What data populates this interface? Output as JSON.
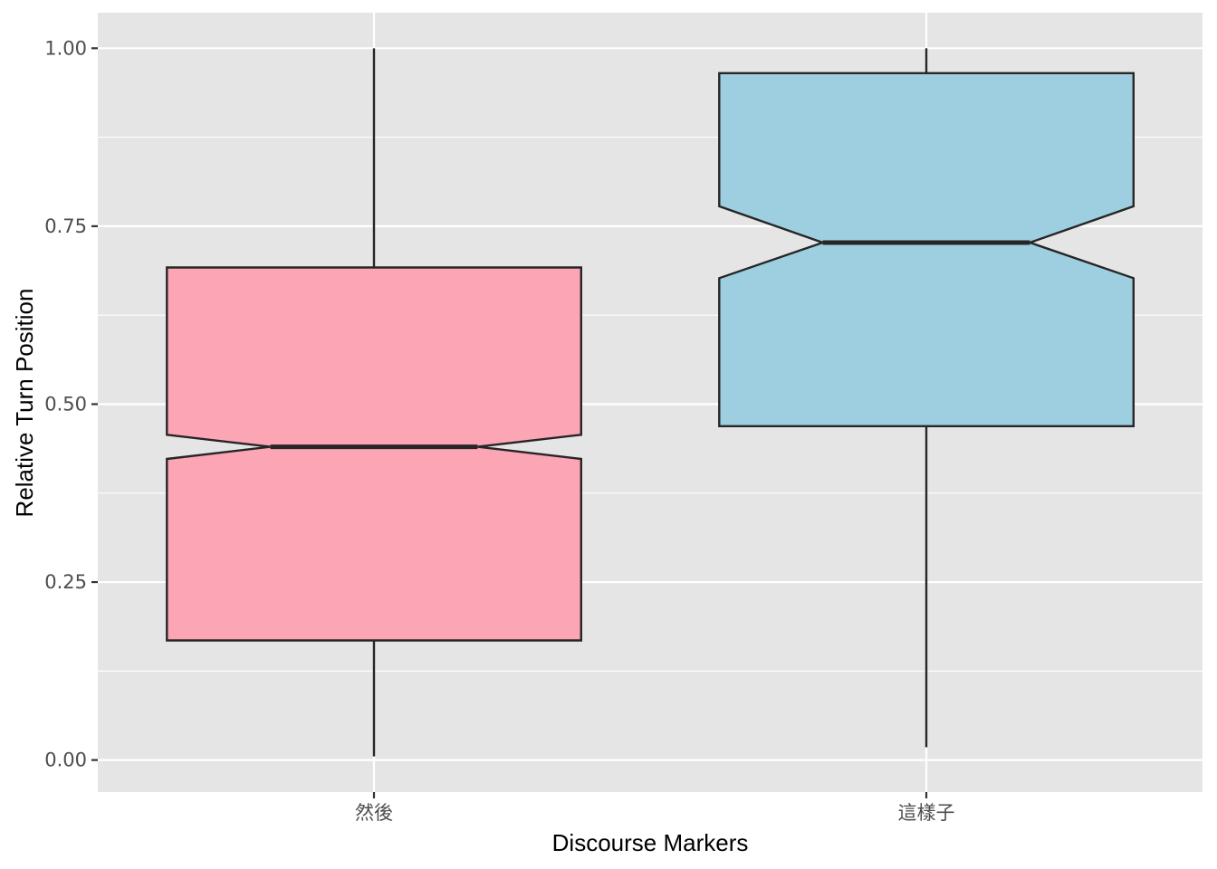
{
  "chart_data": {
    "type": "boxplot",
    "notched": true,
    "xlabel": "Discourse Markers",
    "ylabel": "Relative Turn Position",
    "ylim": [
      -0.045,
      1.05
    ],
    "yticks": [
      {
        "value": 0.0,
        "label": "0.00"
      },
      {
        "value": 0.25,
        "label": "0.25"
      },
      {
        "value": 0.5,
        "label": "0.50"
      },
      {
        "value": 0.75,
        "label": "0.75"
      },
      {
        "value": 1.0,
        "label": "1.00"
      }
    ],
    "grid": true,
    "legend": "none",
    "categories": [
      "然後",
      "這樣子"
    ],
    "boxes": [
      {
        "category": "然後",
        "whisker_low": 0.005,
        "q1": 0.168,
        "notch_low": 0.423,
        "median": 0.44,
        "notch_high": 0.457,
        "q3": 0.692,
        "whisker_high": 1.0,
        "color": "#FCA5B5"
      },
      {
        "category": "這樣子",
        "whisker_low": 0.018,
        "q1": 0.469,
        "notch_low": 0.677,
        "median": 0.727,
        "notch_high": 0.778,
        "q3": 0.965,
        "whisker_high": 1.0,
        "color": "#9ECFE0"
      }
    ]
  },
  "colors": {
    "panel_background": "#E5E5E5",
    "grid": "#FFFFFF",
    "outline": "#262626"
  }
}
